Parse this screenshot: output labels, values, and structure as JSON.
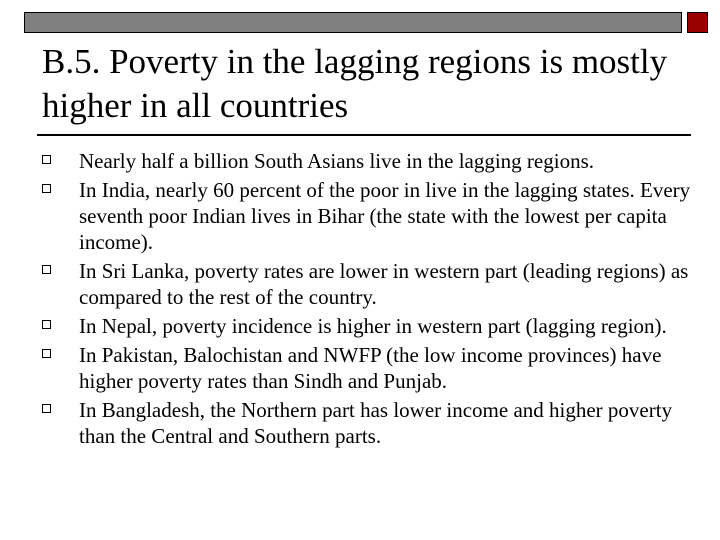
{
  "slide": {
    "title": "B.5. Poverty in the lagging regions is mostly higher in all countries",
    "bullets": [
      "Nearly half a billion South Asians live in the lagging regions.",
      "In India, nearly 60 percent of the poor in live in the lagging states. Every seventh poor Indian lives in Bihar (the state with the lowest per capita income).",
      "In Sri Lanka, poverty rates are lower in western part (leading regions) as compared to the rest of the country.",
      "In Nepal, poverty incidence is higher in western part (lagging region).",
      "In Pakistan, Balochistan and NWFP (the low income provinces) have higher poverty rates than Sindh and Punjab.",
      "In Bangladesh, the Northern part has lower income and higher poverty than the Central and Southern parts."
    ]
  },
  "decor": {
    "top_bar_color": "#808080",
    "corner_square_color": "#990000",
    "bullet_icon": "hollow-square-icon"
  }
}
